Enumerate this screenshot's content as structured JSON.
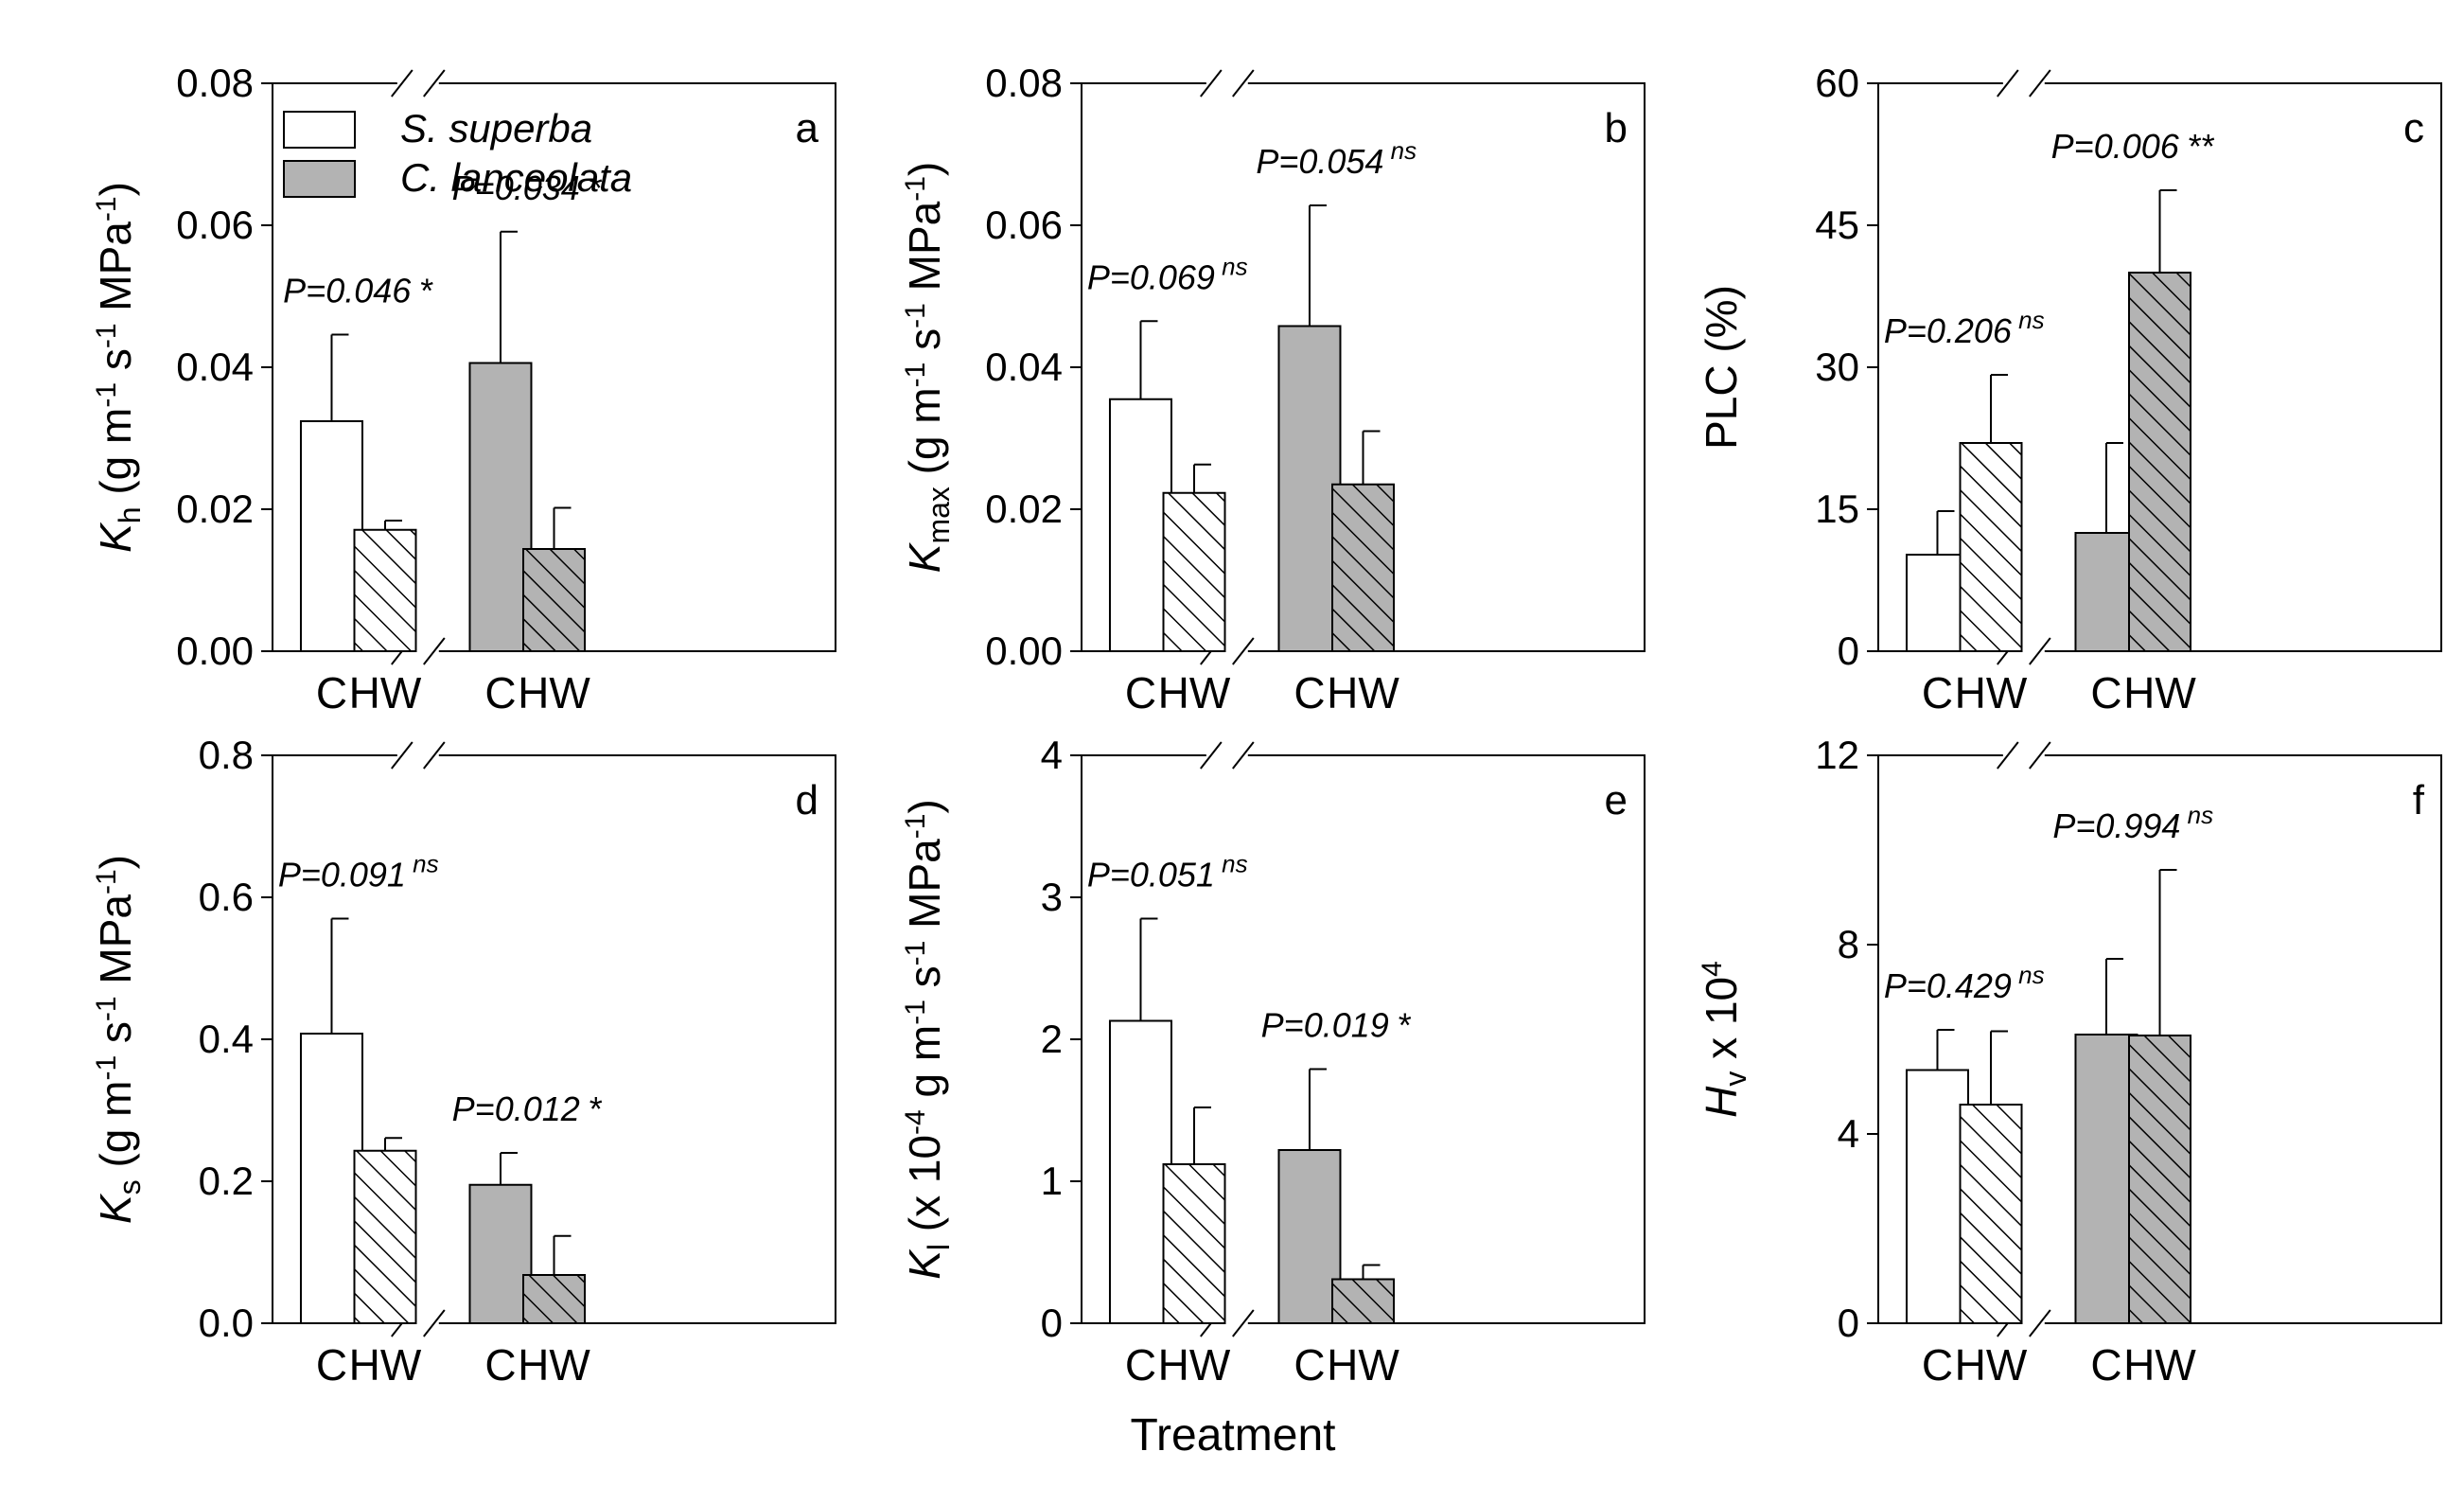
{
  "chart_data": {
    "type": "bar",
    "x_label": "Treatment",
    "species": [
      {
        "name": "S. superba",
        "fill": "#ffffff"
      },
      {
        "name": "C. lanceolata",
        "fill": "#b3b3b3"
      }
    ],
    "treatments": [
      {
        "name": "C",
        "pattern": "solid"
      },
      {
        "name": "HW",
        "pattern": "hatched"
      }
    ],
    "panels": [
      {
        "letter": "a",
        "ylabel": {
          "symbol": "K",
          "sub": "h",
          "unit": " (g m-1 s-1 MPa-1)",
          "parts": [
            " (g m",
            "-1",
            " s",
            "-1",
            " MPa",
            "-1",
            ")"
          ]
        },
        "ylim": [
          0,
          0.08
        ],
        "ticks": [
          "0.00",
          "0.02",
          "0.04",
          "0.06",
          "0.08"
        ],
        "tick_values": [
          0,
          0.02,
          0.04,
          0.06,
          0.08
        ],
        "series": [
          {
            "species": "S. superba",
            "values": [
              0.0324,
              0.0171
            ],
            "errors": [
              0.0122,
              0.0013
            ],
            "p_text": "P=0.046",
            "sig": "*"
          },
          {
            "species": "C. lanceolata",
            "values": [
              0.0406,
              0.0144
            ],
            "errors": [
              0.0185,
              0.0058
            ],
            "p_text": "P=0.034",
            "sig": "*"
          }
        ]
      },
      {
        "letter": "b",
        "ylabel": {
          "symbol": "K",
          "sub": "max",
          "unit": " (g m-1 s-1 MPa-1)",
          "parts": [
            " (g m",
            "-1",
            " s",
            "-1",
            " MPa",
            "-1",
            ")"
          ]
        },
        "ylim": [
          0,
          0.08
        ],
        "ticks": [
          "0.00",
          "0.02",
          "0.04",
          "0.06",
          "0.08"
        ],
        "tick_values": [
          0,
          0.02,
          0.04,
          0.06,
          0.08
        ],
        "series": [
          {
            "species": "S. superba",
            "values": [
              0.0355,
              0.0223
            ],
            "errors": [
              0.011,
              0.004
            ],
            "p_text": "P=0.069",
            "sig": "ns"
          },
          {
            "species": "C. lanceolata",
            "values": [
              0.0458,
              0.0235
            ],
            "errors": [
              0.017,
              0.0075
            ],
            "p_text": "P=0.054",
            "sig": "ns"
          }
        ]
      },
      {
        "letter": "c",
        "ylabel": {
          "symbol": "PLC (%)",
          "sub": "",
          "unit": "",
          "parts": []
        },
        "ylim": [
          0,
          60
        ],
        "ticks": [
          "0",
          "15",
          "30",
          "45",
          "60"
        ],
        "tick_values": [
          0,
          15,
          30,
          45,
          60
        ],
        "series": [
          {
            "species": "S. superba",
            "values": [
              10.2,
              22.0
            ],
            "errors": [
              4.6,
              7.2
            ],
            "p_text": "P=0.206",
            "sig": "ns"
          },
          {
            "species": "C. lanceolata",
            "values": [
              12.5,
              40.0
            ],
            "errors": [
              9.5,
              8.7
            ],
            "p_text": "P=0.006",
            "sig": "**"
          }
        ]
      },
      {
        "letter": "d",
        "ylabel": {
          "symbol": "K",
          "sub": "s",
          "unit": " (g m-1 s-1 MPa-1)",
          "parts": [
            " (g m",
            "-1",
            " s",
            "-1",
            " MPa",
            "-1",
            ")"
          ]
        },
        "ylim": [
          0,
          0.8
        ],
        "ticks": [
          "0.0",
          "0.2",
          "0.4",
          "0.6",
          "0.8"
        ],
        "tick_values": [
          0,
          0.2,
          0.4,
          0.6,
          0.8
        ],
        "series": [
          {
            "species": "S. superba",
            "values": [
              0.408,
              0.243
            ],
            "errors": [
              0.162,
              0.018
            ],
            "p_text": "P=0.091",
            "sig": "ns"
          },
          {
            "species": "C. lanceolata",
            "values": [
              0.195,
              0.068
            ],
            "errors": [
              0.045,
              0.055
            ],
            "p_text": "P=0.012",
            "sig": "*"
          }
        ]
      },
      {
        "letter": "e",
        "ylabel": {
          "symbol": "K",
          "sub": "l",
          "unit": " (x 10-4 g m-1 s-1 MPa-1)",
          "parts": [
            " (x 10",
            "-4",
            " g m",
            "-1",
            " s",
            "-1",
            " MPa",
            "-1",
            ")"
          ]
        },
        "ylim": [
          0,
          4
        ],
        "ticks": [
          "0",
          "1",
          "2",
          "3",
          "4"
        ],
        "tick_values": [
          0,
          1,
          2,
          3,
          4
        ],
        "series": [
          {
            "species": "S. superba",
            "values": [
              2.13,
              1.12
            ],
            "errors": [
              0.72,
              0.4
            ],
            "p_text": "P=0.051",
            "sig": "ns"
          },
          {
            "species": "C. lanceolata",
            "values": [
              1.22,
              0.31
            ],
            "errors": [
              0.57,
              0.1
            ],
            "p_text": "P=0.019",
            "sig": "*"
          }
        ]
      },
      {
        "letter": "f",
        "ylabel": {
          "symbol": "H",
          "sub": "v",
          "unit": " x 104",
          "parts": [
            " x 10",
            "4"
          ]
        },
        "ylim": [
          0,
          12
        ],
        "ticks": [
          "0",
          "4",
          "8",
          "12"
        ],
        "tick_values": [
          0,
          4,
          8,
          12
        ],
        "series": [
          {
            "species": "S. superba",
            "values": [
              5.35,
              4.62
            ],
            "errors": [
              0.85,
              1.55
            ],
            "p_text": "P=0.429",
            "sig": "ns"
          },
          {
            "species": "C. lanceolata",
            "values": [
              6.1,
              6.08
            ],
            "errors": [
              1.6,
              3.5
            ],
            "p_text": "P=0.994",
            "sig": "ns"
          }
        ]
      }
    ]
  }
}
